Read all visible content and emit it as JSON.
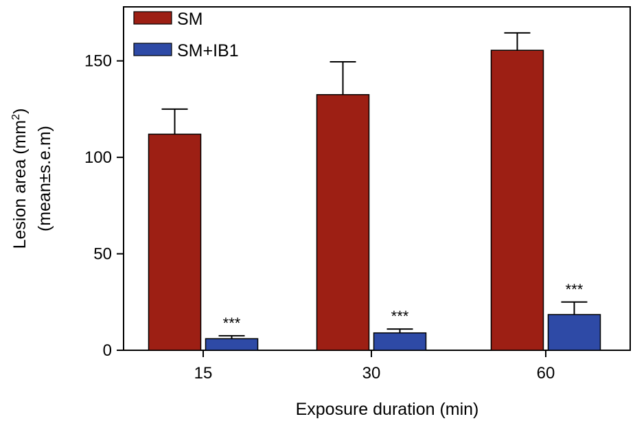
{
  "chart_data": {
    "type": "bar",
    "categories": [
      "15",
      "30",
      "60"
    ],
    "series": [
      {
        "name": "SM",
        "color": "#9d1f14",
        "values": [
          112,
          132.5,
          155.5
        ],
        "errors": [
          13,
          17,
          9
        ],
        "annotations": [
          "",
          "",
          ""
        ]
      },
      {
        "name": "SM+IB1",
        "color": "#2e4aa6",
        "values": [
          6,
          9,
          18.5
        ],
        "errors": [
          1.5,
          2,
          6.5
        ],
        "annotations": [
          "***",
          "***",
          "***"
        ]
      }
    ],
    "xlabel": "Exposure duration (min)",
    "ylabel_line1": "Lesion area (mm",
    "ylabel_superscript": "2",
    "ylabel_line1_end": ")",
    "ylabel_line2": "(mean±s.e.m)",
    "ylim": [
      0,
      178
    ],
    "yticks": [
      0,
      50,
      100,
      150
    ],
    "legend_position": "top-left",
    "grid": false
  }
}
